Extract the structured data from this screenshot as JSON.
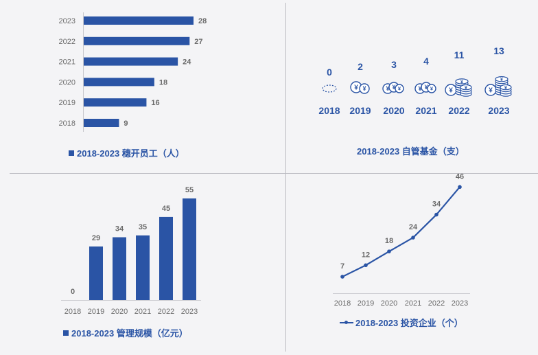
{
  "chart_data": [
    {
      "type": "bar",
      "orientation": "horizontal",
      "categories": [
        "2023",
        "2022",
        "2021",
        "2020",
        "2019",
        "2018"
      ],
      "values": [
        28,
        27,
        24,
        18,
        16,
        9
      ],
      "legend": "2018-2023 穗开员工（人）",
      "color": "#2a54a5"
    },
    {
      "type": "pictogram",
      "categories": [
        "2018",
        "2019",
        "2020",
        "2021",
        "2022",
        "2023"
      ],
      "values": [
        0,
        2,
        3,
        4,
        11,
        13
      ],
      "legend": "2018-2023 自管基金（支）",
      "icon": "yuan-coin-icon",
      "color": "#2a54a5"
    },
    {
      "type": "bar",
      "categories": [
        "2018",
        "2019",
        "2020",
        "2021",
        "2022",
        "2023"
      ],
      "values": [
        0,
        29,
        34,
        35,
        45,
        55
      ],
      "legend": "2018-2023 管理规模（亿元）",
      "color": "#2a54a5"
    },
    {
      "type": "line",
      "categories": [
        "2018",
        "2019",
        "2020",
        "2021",
        "2022",
        "2023"
      ],
      "values": [
        7,
        12,
        18,
        24,
        34,
        46
      ],
      "legend": "2018-2023 投资企业（个）",
      "color": "#2a54a5"
    }
  ]
}
